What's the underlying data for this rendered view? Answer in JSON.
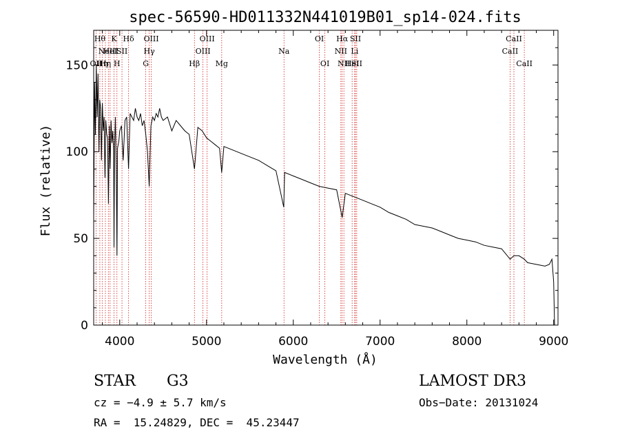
{
  "colors": {
    "spectrum": "#000000",
    "line_marker": "#d11a1a",
    "axis": "#000000",
    "background": "#ffffff"
  },
  "chart_data": {
    "type": "line",
    "title": "spec-56590-HD011332N441019B01_sp14-024.fits",
    "xlabel": "Wavelength (Å)",
    "ylabel": "Flux (relative)",
    "xlim": [
      3700,
      9050
    ],
    "ylim": [
      0,
      170
    ],
    "x_ticks": [
      4000,
      5000,
      6000,
      7000,
      8000,
      9000
    ],
    "x_tick_labels": [
      "4000",
      "5000",
      "6000",
      "7000",
      "8000",
      "9000"
    ],
    "y_ticks": [
      0,
      50,
      100,
      150
    ],
    "y_tick_labels": [
      "0",
      "50",
      "100",
      "150"
    ],
    "series": [
      {
        "name": "flux",
        "x": [
          3700,
          3710,
          3720,
          3730,
          3740,
          3750,
          3760,
          3770,
          3780,
          3790,
          3800,
          3810,
          3820,
          3830,
          3840,
          3850,
          3860,
          3870,
          3880,
          3890,
          3900,
          3910,
          3920,
          3930,
          3934,
          3940,
          3950,
          3960,
          3968,
          3975,
          3990,
          4000,
          4020,
          4040,
          4060,
          4080,
          4102,
          4120,
          4140,
          4160,
          4180,
          4200,
          4220,
          4240,
          4260,
          4280,
          4300,
          4320,
          4340,
          4360,
          4380,
          4400,
          4420,
          4440,
          4460,
          4480,
          4500,
          4550,
          4600,
          4650,
          4700,
          4750,
          4800,
          4861,
          4900,
          4950,
          5000,
          5050,
          5100,
          5150,
          5175,
          5200,
          5300,
          5400,
          5500,
          5600,
          5700,
          5800,
          5890,
          5900,
          6000,
          6100,
          6200,
          6300,
          6400,
          6500,
          6563,
          6600,
          6700,
          6800,
          6900,
          7000,
          7100,
          7200,
          7300,
          7400,
          7500,
          7600,
          7700,
          7800,
          7900,
          8000,
          8100,
          8200,
          8300,
          8400,
          8498,
          8542,
          8600,
          8662,
          8700,
          8800,
          8900,
          8950,
          8980,
          9000,
          9010
        ],
        "y": [
          60,
          140,
          110,
          150,
          120,
          145,
          100,
          130,
          125,
          95,
          128,
          112,
          120,
          85,
          118,
          110,
          108,
          70,
          115,
          90,
          118,
          105,
          112,
          100,
          45,
          100,
          120,
          90,
          40,
          102,
          106,
          112,
          115,
          95,
          118,
          120,
          90,
          122,
          120,
          118,
          125,
          120,
          118,
          122,
          115,
          118,
          110,
          100,
          80,
          115,
          120,
          118,
          122,
          120,
          125,
          120,
          118,
          120,
          112,
          118,
          115,
          112,
          110,
          90,
          114,
          112,
          108,
          106,
          104,
          102,
          88,
          103,
          101,
          99,
          97,
          95,
          92,
          89,
          68,
          88,
          86,
          84,
          82,
          80,
          79,
          78,
          62,
          76,
          74,
          72,
          70,
          68,
          65,
          63,
          61,
          58,
          57,
          56,
          54,
          52,
          50,
          49,
          48,
          46,
          45,
          44,
          38,
          40,
          40,
          38,
          36,
          35,
          34,
          35,
          38,
          25,
          0
        ]
      }
    ],
    "line_markers": [
      {
        "wavelength": 3727,
        "label": "OII",
        "row": 2
      },
      {
        "wavelength": 3771,
        "label": "Hθ",
        "row": 0
      },
      {
        "wavelength": 3798,
        "label": "Hη",
        "row": 2
      },
      {
        "wavelength": 3835,
        "label": "Hη",
        "row": 2
      },
      {
        "wavelength": 3869,
        "label": "NeIII",
        "row": 1
      },
      {
        "wavelength": 3889,
        "label": "HeI",
        "row": 1
      },
      {
        "wavelength": 3934,
        "label": "K",
        "row": 0
      },
      {
        "wavelength": 3968,
        "label": "H",
        "row": 2
      },
      {
        "wavelength": 4026,
        "label": "SII",
        "row": 1
      },
      {
        "wavelength": 4102,
        "label": "Hδ",
        "row": 0
      },
      {
        "wavelength": 4300,
        "label": "G",
        "row": 2
      },
      {
        "wavelength": 4340,
        "label": "Hγ",
        "row": 1
      },
      {
        "wavelength": 4363,
        "label": "OIII",
        "row": 0
      },
      {
        "wavelength": 4861,
        "label": "Hβ",
        "row": 2
      },
      {
        "wavelength": 4959,
        "label": "OIII",
        "row": 1
      },
      {
        "wavelength": 5007,
        "label": "OIII",
        "row": 0
      },
      {
        "wavelength": 5175,
        "label": "Mg",
        "row": 2
      },
      {
        "wavelength": 5893,
        "label": "Na",
        "row": 1
      },
      {
        "wavelength": 6300,
        "label": "OI",
        "row": 0
      },
      {
        "wavelength": 6364,
        "label": "OI",
        "row": 2
      },
      {
        "wavelength": 6548,
        "label": "NII",
        "row": 1
      },
      {
        "wavelength": 6563,
        "label": "Hα",
        "row": 0
      },
      {
        "wavelength": 6583,
        "label": "NII",
        "row": 2
      },
      {
        "wavelength": 6678,
        "label": "HeI",
        "row": 2
      },
      {
        "wavelength": 6707,
        "label": "Li",
        "row": 1
      },
      {
        "wavelength": 6716,
        "label": "SII",
        "row": 0
      },
      {
        "wavelength": 6731,
        "label": "SII",
        "row": 2
      },
      {
        "wavelength": 8498,
        "label": "CaII",
        "row": 1
      },
      {
        "wavelength": 8542,
        "label": "CaII",
        "row": 0
      },
      {
        "wavelength": 8662,
        "label": "CaII",
        "row": 2
      }
    ]
  },
  "info": {
    "object_class": "STAR",
    "subclass": "G3",
    "survey": "LAMOST DR3",
    "cz": "cz = −4.9 ± 5.7 km/s",
    "obs_date": "Obs−Date: 20131024",
    "coords": "RA =  15.24829, DEC =  45.23447"
  }
}
